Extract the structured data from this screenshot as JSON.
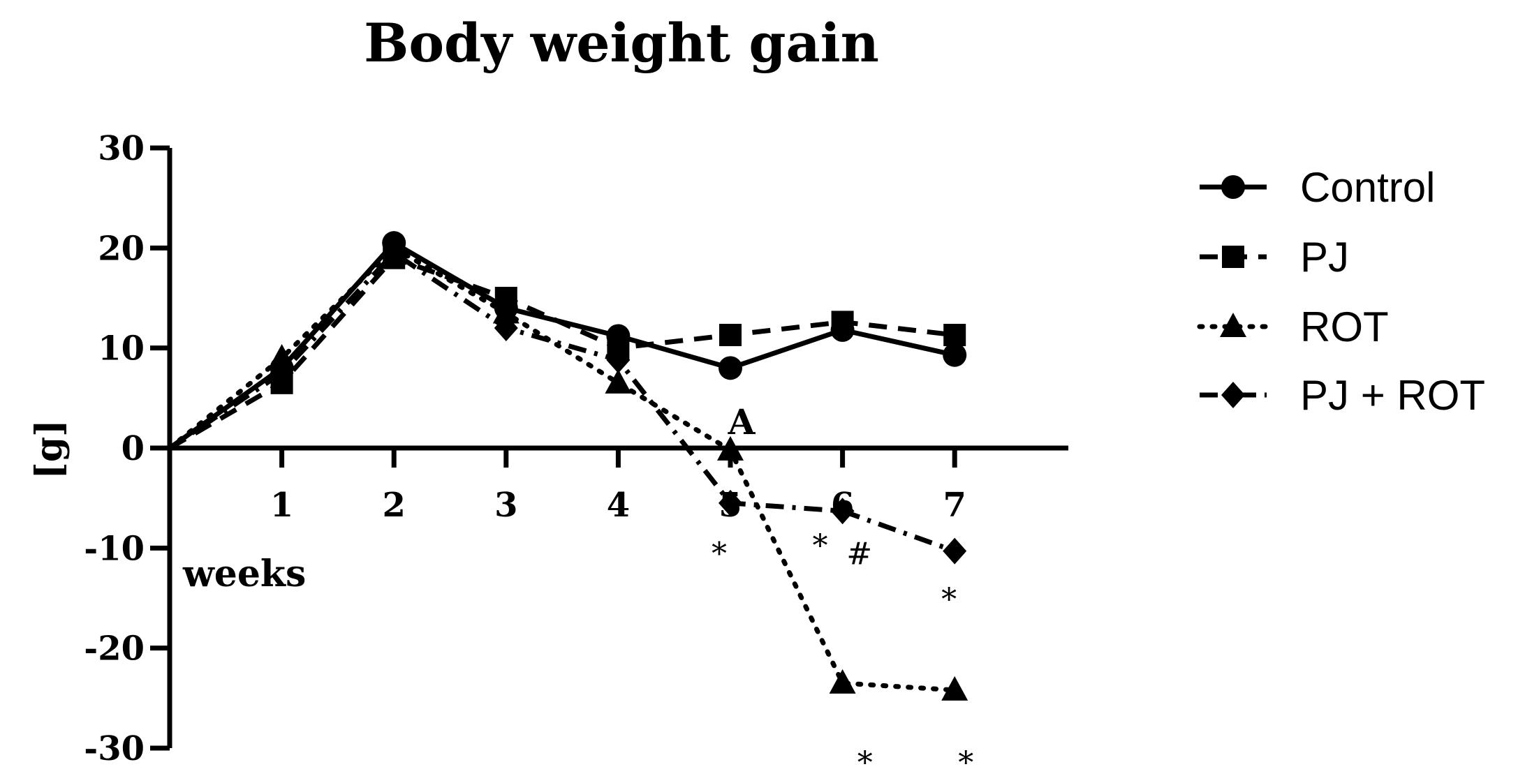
{
  "chart_data": {
    "type": "line",
    "title": "Body weight gain",
    "xlabel": "weeks",
    "ylabel": "[g]",
    "x": [
      0,
      1,
      2,
      3,
      4,
      5,
      6,
      7
    ],
    "x_tick_labels": [
      "1",
      "2",
      "3",
      "4",
      "5",
      "6",
      "7"
    ],
    "ylim": [
      -30,
      30
    ],
    "y_ticks": [
      "30",
      "20",
      "10",
      "0",
      "-10",
      "-20",
      "-30"
    ],
    "legend_position": "right",
    "grid": false,
    "series": [
      {
        "name": "Control",
        "marker": "circle",
        "line": "solid",
        "values": [
          0,
          8,
          20.5,
          14,
          11.2,
          8,
          11.8,
          9.3
        ]
      },
      {
        "name": "PJ",
        "marker": "square",
        "line": "dashed",
        "values": [
          0,
          6.5,
          19,
          15,
          10,
          11.3,
          12.6,
          11.3
        ]
      },
      {
        "name": "ROT",
        "marker": "triangle",
        "line": "dotted",
        "values": [
          0,
          9,
          20,
          13.5,
          6.5,
          -0.2,
          -23.5,
          -24.2
        ]
      },
      {
        "name": "PJ + ROT",
        "marker": "diamond",
        "line": "dashdot",
        "values": [
          0,
          7.5,
          19.5,
          12,
          8.8,
          -5.5,
          -6.3,
          -10.3
        ]
      }
    ],
    "annotations": [
      {
        "text": "A",
        "x": 5.1,
        "y": 1.4,
        "style": "bold"
      },
      {
        "text": "*",
        "x": 4.9,
        "y": -11.6
      },
      {
        "text": "*",
        "x": 5.8,
        "y": -10.8
      },
      {
        "text": "#",
        "x": 6.15,
        "y": -11.6
      },
      {
        "text": "*",
        "x": 6.95,
        "y": -16.2
      },
      {
        "text": "*",
        "x": 6.2,
        "y": -32.5
      },
      {
        "text": "*",
        "x": 7.1,
        "y": -32.5
      }
    ]
  }
}
